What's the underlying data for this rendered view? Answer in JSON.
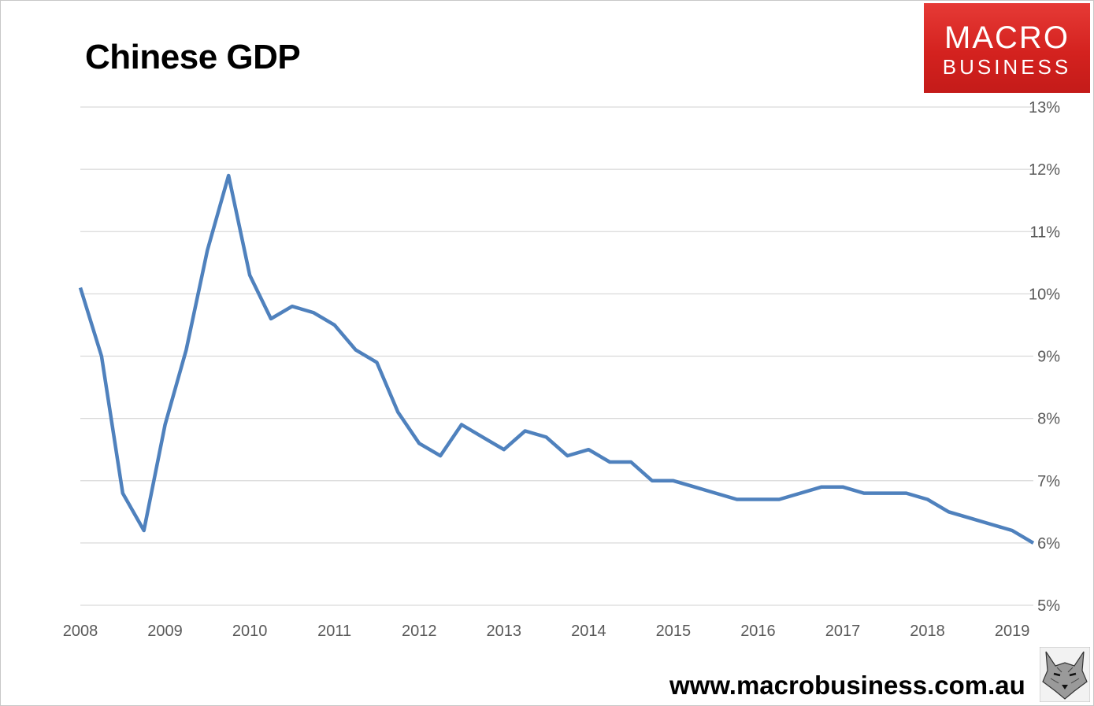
{
  "chart_data": {
    "type": "line",
    "title": "Chinese GDP",
    "x_tick_labels": [
      "2008",
      "2009",
      "2010",
      "2011",
      "2012",
      "2013",
      "2014",
      "2015",
      "2016",
      "2017",
      "2018",
      "2019"
    ],
    "y_tick_labels": [
      "5%",
      "6%",
      "7%",
      "8%",
      "9%",
      "10%",
      "11%",
      "12%",
      "13%"
    ],
    "ylim": [
      5,
      13
    ],
    "y_axis_position": "right",
    "grid": "horizontal",
    "line_color": "#4f81bd",
    "series": [
      {
        "x": [
          2008.0,
          2008.25,
          2008.5,
          2008.75,
          2009.0,
          2009.25,
          2009.5,
          2009.75,
          2010.0,
          2010.25,
          2010.5,
          2010.75,
          2011.0,
          2011.25,
          2011.5,
          2011.75,
          2012.0,
          2012.25,
          2012.5,
          2012.75,
          2013.0,
          2013.25,
          2013.5,
          2013.75,
          2014.0,
          2014.25,
          2014.5,
          2014.75,
          2015.0,
          2015.25,
          2015.5,
          2015.75,
          2016.0,
          2016.25,
          2016.5,
          2016.75,
          2017.0,
          2017.25,
          2017.5,
          2017.75,
          2018.0,
          2018.25,
          2018.5,
          2018.75,
          2019.0,
          2019.25
        ],
        "values": [
          10.1,
          9.0,
          6.8,
          6.2,
          7.9,
          9.1,
          10.7,
          11.9,
          10.3,
          9.6,
          9.8,
          9.7,
          9.5,
          9.1,
          8.9,
          8.1,
          7.6,
          7.4,
          7.9,
          7.7,
          7.5,
          7.8,
          7.7,
          7.4,
          7.5,
          7.3,
          7.3,
          7.0,
          7.0,
          6.9,
          6.8,
          6.7,
          6.7,
          6.7,
          6.8,
          6.9,
          6.9,
          6.8,
          6.8,
          6.8,
          6.7,
          6.5,
          6.4,
          6.3,
          6.2,
          6.0
        ]
      }
    ]
  },
  "branding": {
    "logo_line1": "MACRO",
    "logo_line2": "BUSINESS",
    "logo_color": "#d4221f",
    "website": "www.macrobusiness.com.au",
    "emblem_icon": "wolf-icon"
  }
}
